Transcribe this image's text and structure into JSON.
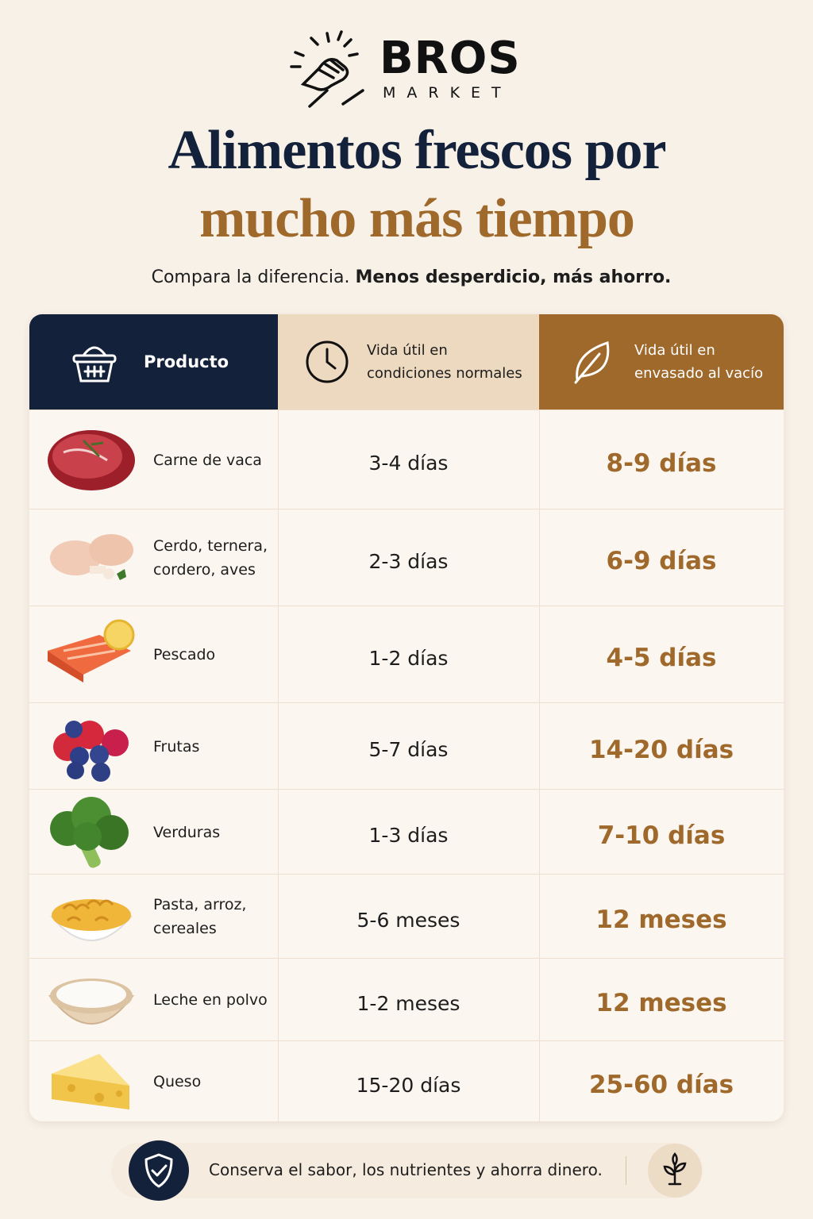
{
  "brand": {
    "name": "BROS",
    "tagline": "MARKET"
  },
  "header": {
    "title_line1": "Alimentos frescos por",
    "title_line2": "mucho más tiempo",
    "subtitle_plain": "Compara la diferencia.",
    "subtitle_bold": "Menos desperdicio, más ahorro."
  },
  "table": {
    "columns": [
      "Producto",
      "Vida útil en condiciones normales",
      "Vida útil en envasado al vacío"
    ],
    "rows": [
      [
        "Carne de vaca",
        "3-4 días",
        "8-9 días"
      ],
      [
        "Cerdo, ternera, cordero, aves",
        "2-3 días",
        "6-9 días"
      ],
      [
        "Pescado",
        "1-2 días",
        "4-5 días"
      ],
      [
        "Frutas",
        "5-7 días",
        "14-20 días"
      ],
      [
        "Verduras",
        "1-3 días",
        "7-10 días"
      ],
      [
        "Pasta, arroz, cereales",
        "5-6 meses",
        "12 meses"
      ],
      [
        "Leche en polvo",
        "1-2 meses",
        "12 meses"
      ],
      [
        "Queso",
        "15-20 días",
        "25-60 días"
      ]
    ]
  },
  "footer": {
    "text": "Conserva el sabor, los nutrientes y ahorra dinero."
  }
}
